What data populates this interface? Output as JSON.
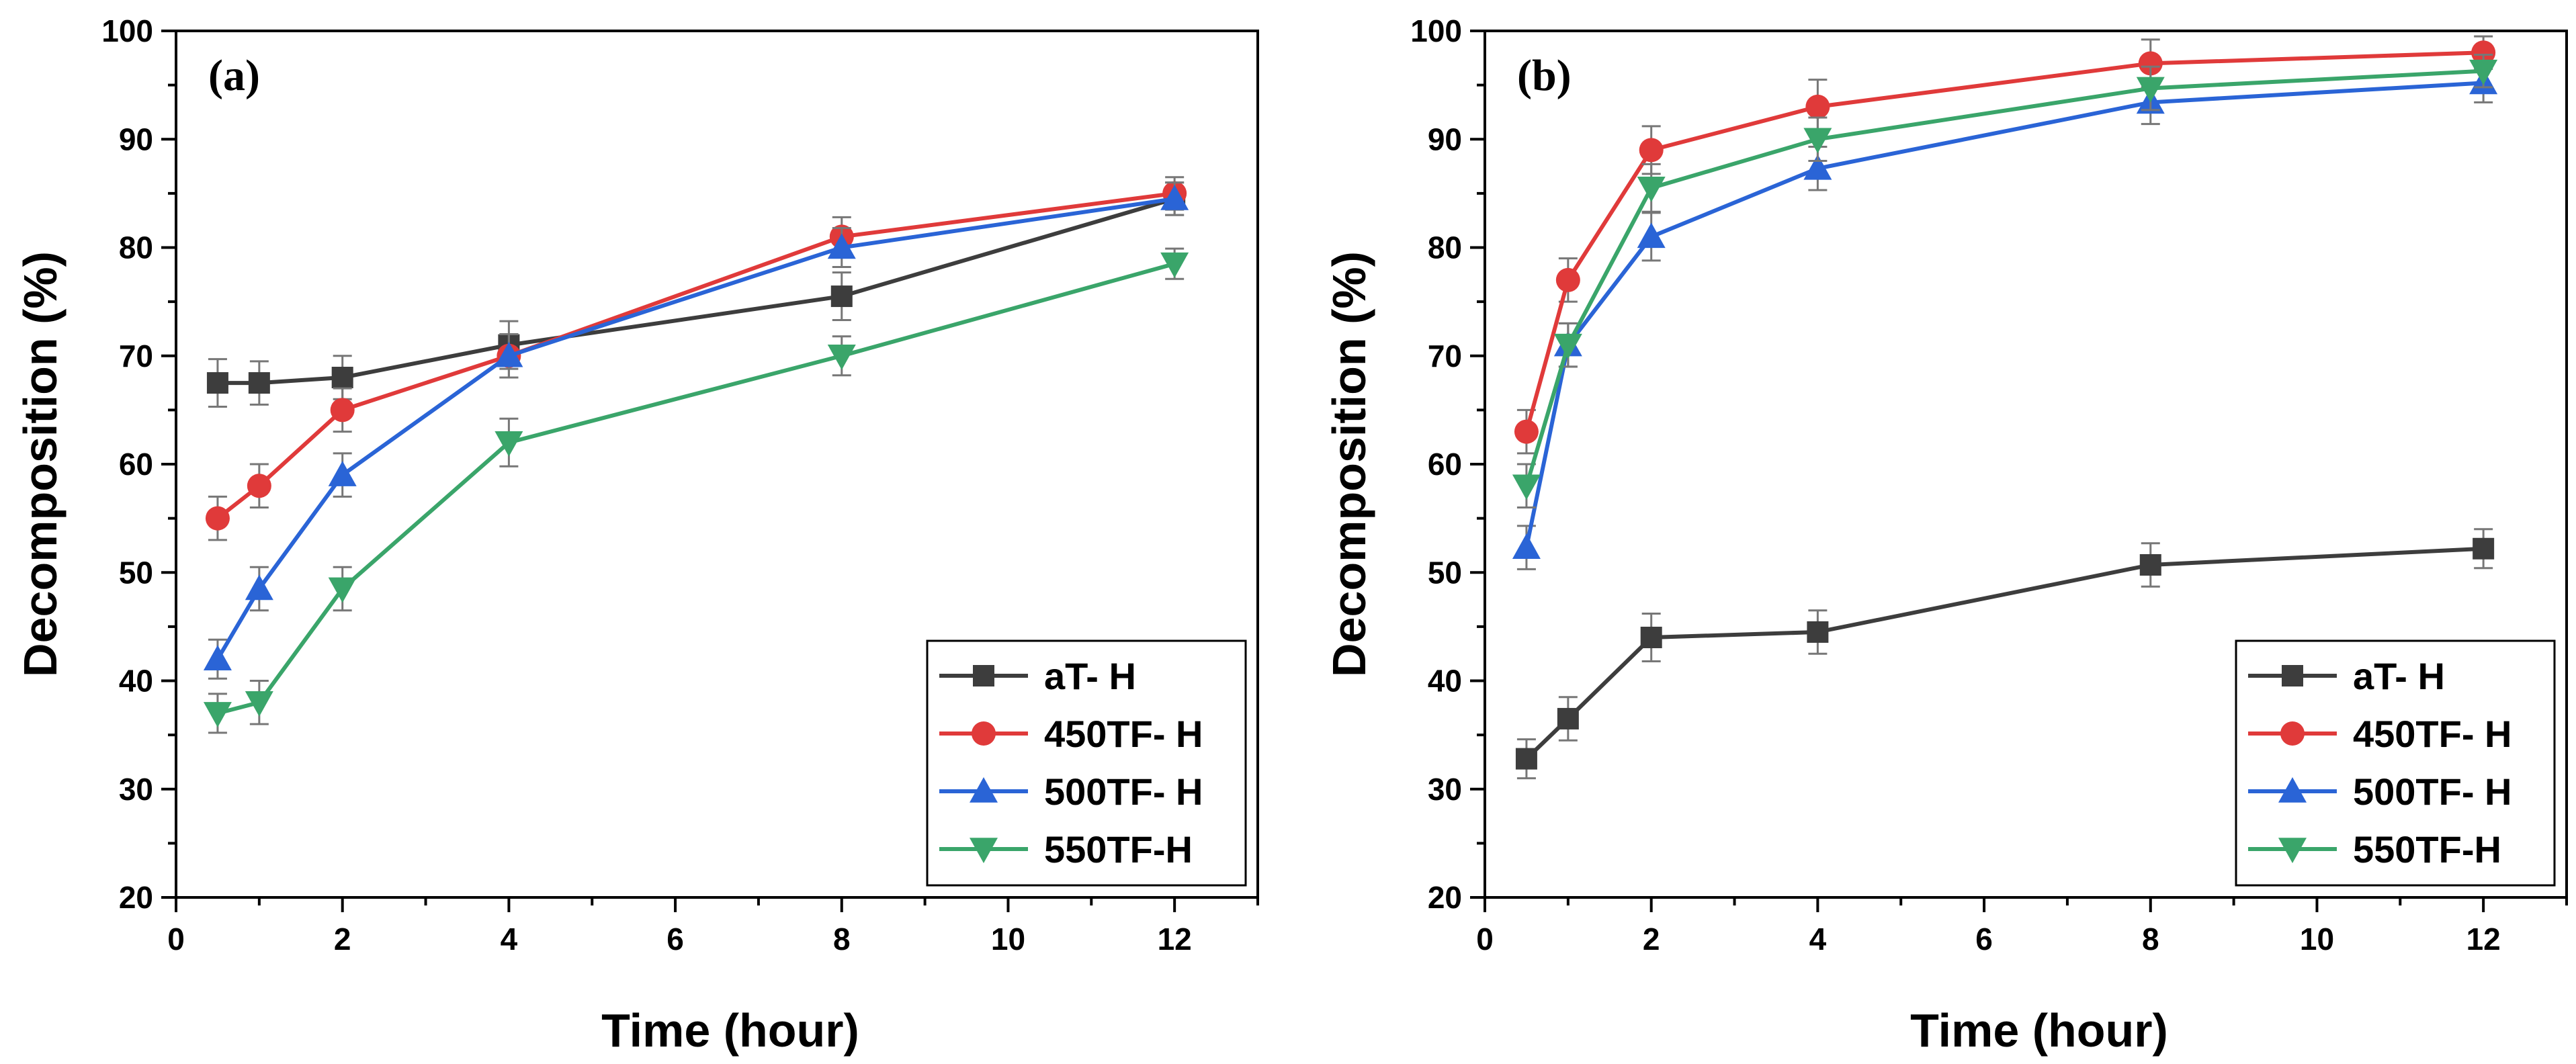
{
  "chart_data": [
    {
      "type": "line",
      "panel_label": "(a)",
      "xlabel": "Time (hour)",
      "ylabel": "Decomposition (%)",
      "xlim": [
        0,
        13
      ],
      "ylim": [
        20,
        100
      ],
      "xticks": [
        0,
        2,
        4,
        6,
        8,
        10,
        12
      ],
      "yticks": [
        20,
        30,
        40,
        50,
        60,
        70,
        80,
        90,
        100
      ],
      "x": [
        0.5,
        1,
        2,
        4,
        8,
        12
      ],
      "legend_position": "bottom-right",
      "series": [
        {
          "name": "aT- H",
          "marker": "square",
          "color": "#3d3d3d",
          "values": [
            67.5,
            67.5,
            68,
            71,
            75.5,
            84.5
          ],
          "errors": [
            2.2,
            2.0,
            2.0,
            2.2,
            2.2,
            1.5
          ]
        },
        {
          "name": "450TF- H",
          "marker": "circle",
          "color": "#e03a3a",
          "values": [
            55,
            58,
            65,
            70,
            81,
            85
          ],
          "errors": [
            2.0,
            2.0,
            2.0,
            2.0,
            1.8,
            1.5
          ]
        },
        {
          "name": "500TF- H",
          "marker": "triangle-up",
          "color": "#2a64d6",
          "values": [
            42,
            48.5,
            59,
            70,
            80,
            84.5
          ],
          "errors": [
            1.8,
            2.0,
            2.0,
            2.0,
            1.8,
            1.5
          ]
        },
        {
          "name": "550TF-H",
          "marker": "triangle-down",
          "color": "#3aa56a",
          "values": [
            37,
            38,
            48.5,
            62,
            70,
            78.5
          ],
          "errors": [
            1.8,
            2.0,
            2.0,
            2.2,
            1.8,
            1.4
          ]
        }
      ]
    },
    {
      "type": "line",
      "panel_label": "(b)",
      "xlabel": "Time (hour)",
      "ylabel": "Decomposition (%)",
      "xlim": [
        0,
        13
      ],
      "ylim": [
        20,
        100
      ],
      "xticks": [
        0,
        2,
        4,
        6,
        8,
        10,
        12
      ],
      "yticks": [
        20,
        30,
        40,
        50,
        60,
        70,
        80,
        90,
        100
      ],
      "x": [
        0.5,
        1,
        2,
        4,
        8,
        12
      ],
      "legend_position": "bottom-right",
      "series": [
        {
          "name": "aT- H",
          "marker": "square",
          "color": "#3d3d3d",
          "values": [
            32.8,
            36.5,
            44,
            44.5,
            50.7,
            52.2
          ],
          "errors": [
            1.8,
            2.0,
            2.2,
            2.0,
            2.0,
            1.8
          ]
        },
        {
          "name": "450TF- H",
          "marker": "circle",
          "color": "#e03a3a",
          "values": [
            63,
            77,
            89,
            93,
            97,
            98
          ],
          "errors": [
            2.0,
            2.0,
            2.2,
            2.5,
            2.2,
            1.5
          ]
        },
        {
          "name": "500TF- H",
          "marker": "triangle-up",
          "color": "#2a64d6",
          "values": [
            52.3,
            71,
            81,
            87.3,
            93.4,
            95.2
          ],
          "errors": [
            2.0,
            2.0,
            2.2,
            2.0,
            2.0,
            1.8
          ]
        },
        {
          "name": "550TF-H",
          "marker": "triangle-down",
          "color": "#3aa56a",
          "values": [
            58,
            71,
            85.5,
            90,
            94.7,
            96.3
          ],
          "errors": [
            2.0,
            2.0,
            2.2,
            2.0,
            2.0,
            1.5
          ]
        }
      ]
    }
  ]
}
